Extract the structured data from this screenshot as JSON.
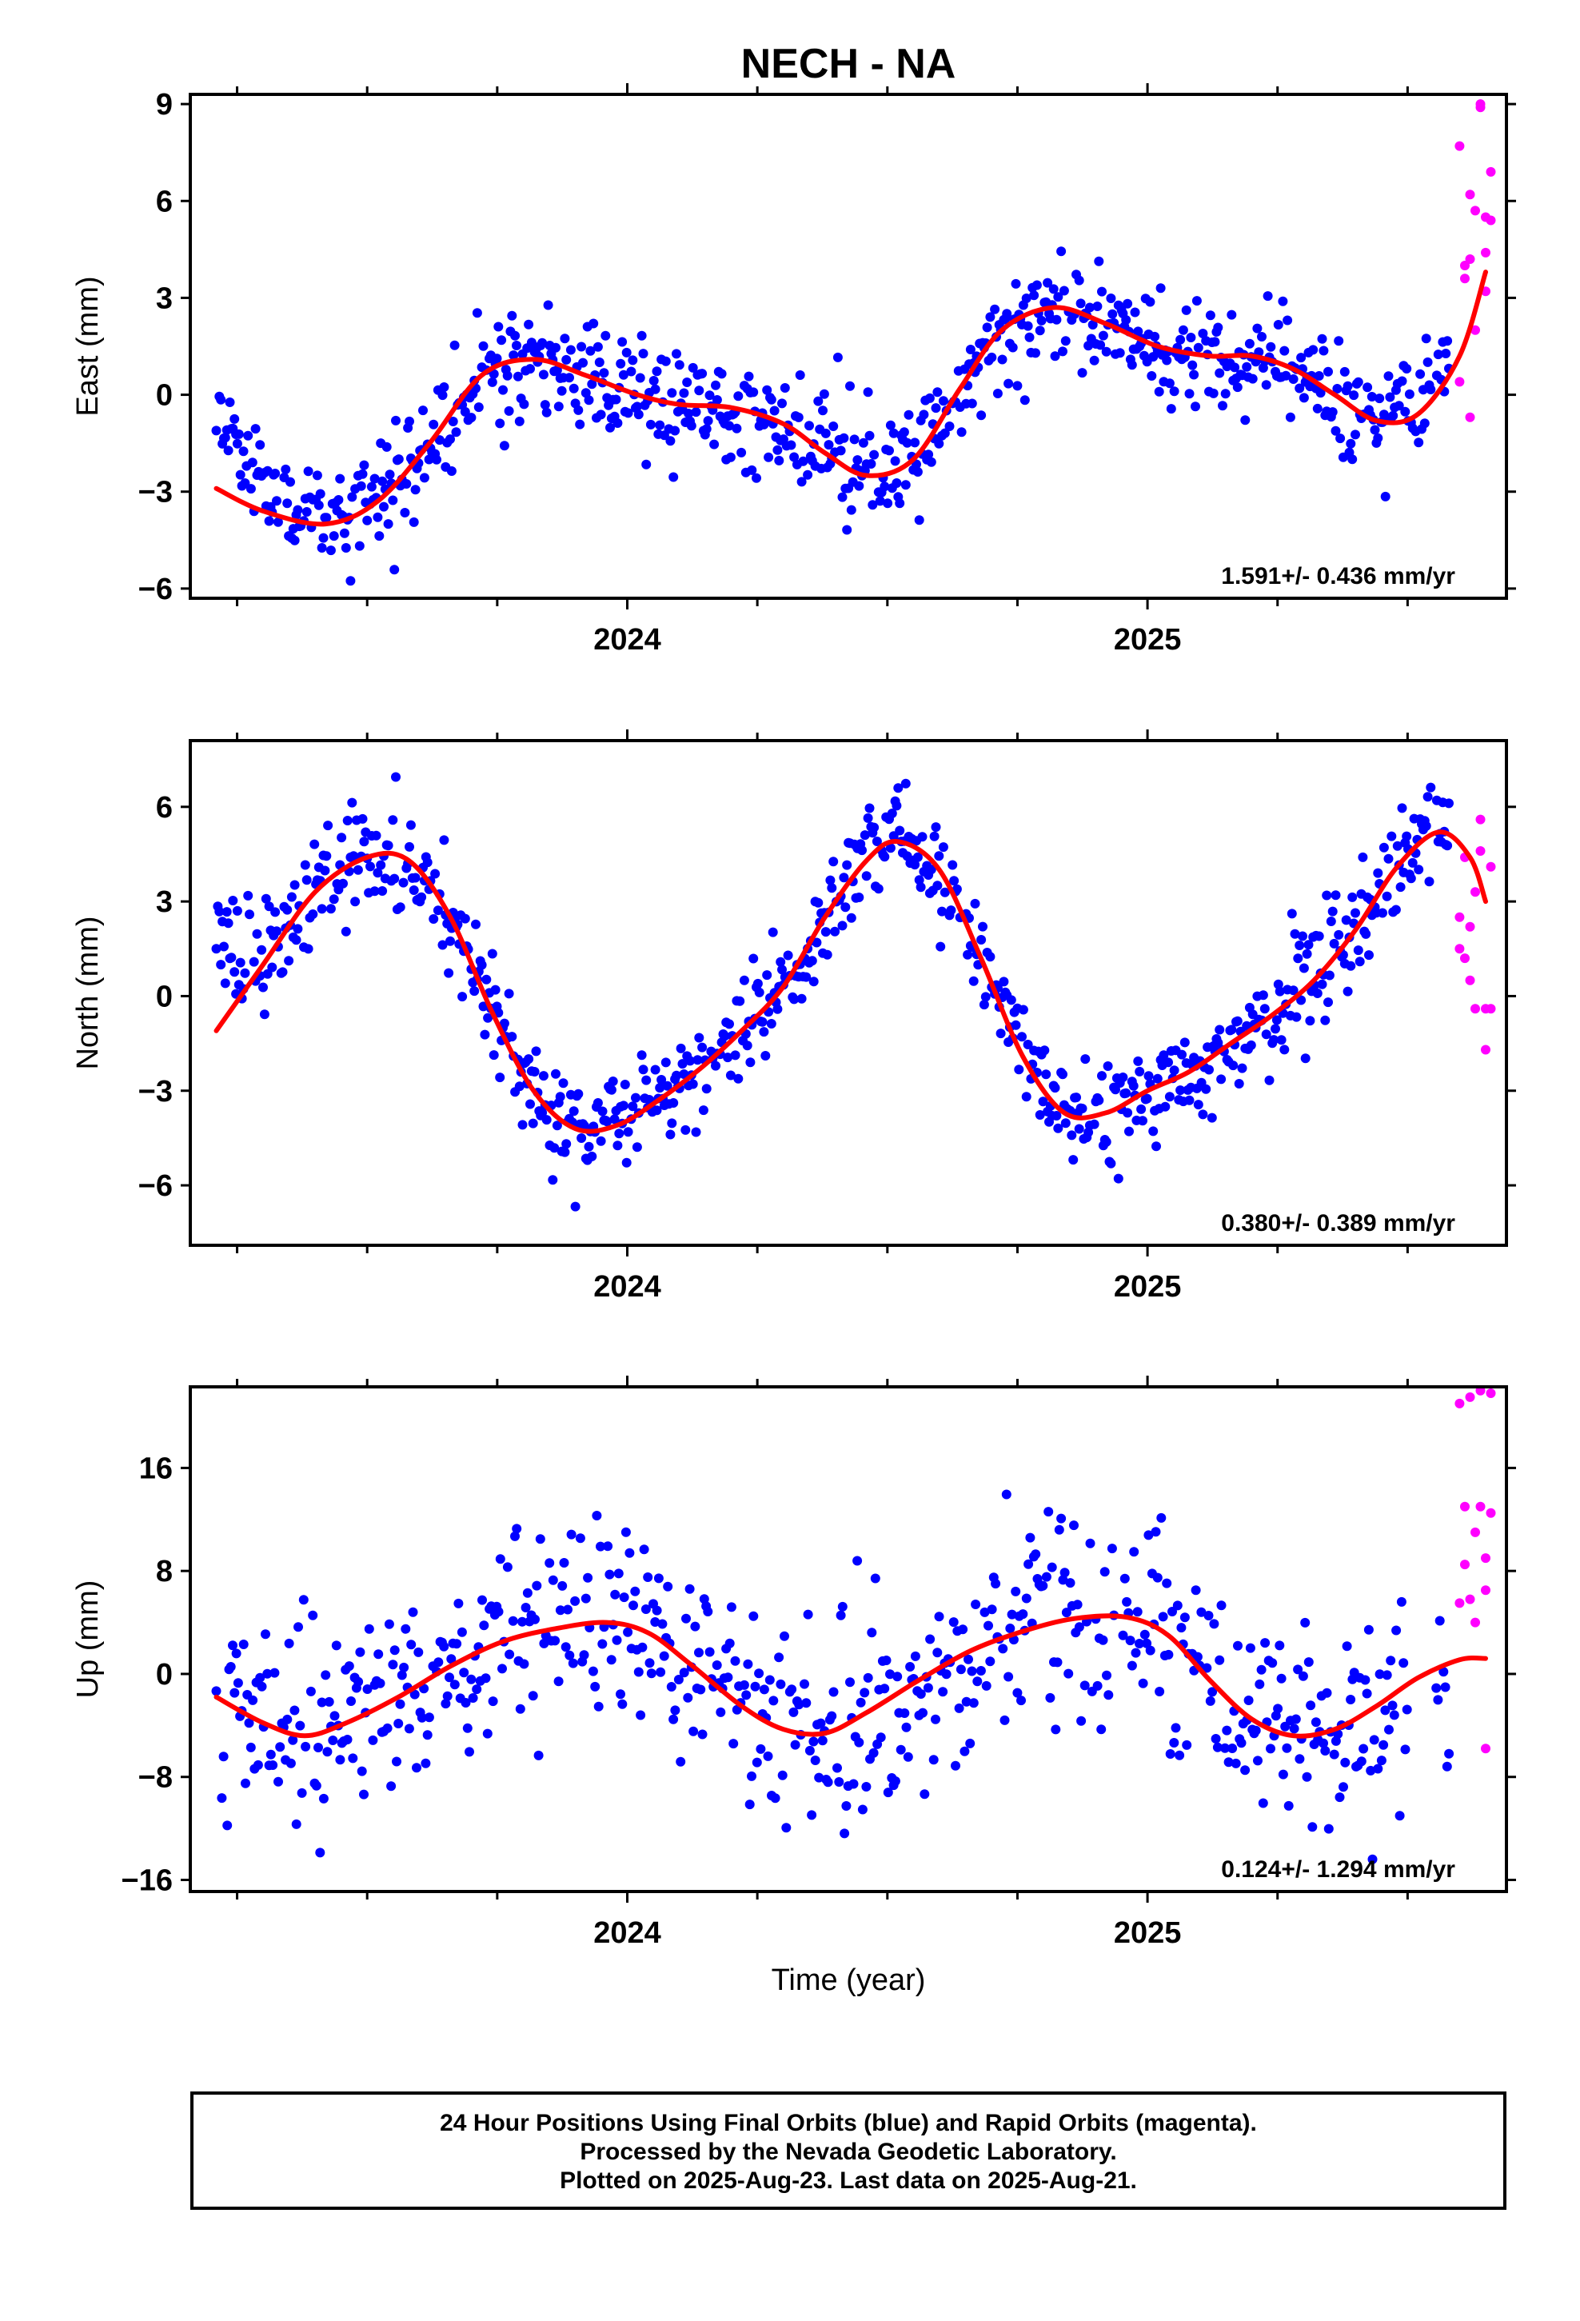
{
  "title": "NECH - NA",
  "xlabel": "Time (year)",
  "colors": {
    "final": "#0000ff",
    "rapid": "#ff00ff",
    "fit": "#ff0000",
    "frame": "#000000"
  },
  "footer": {
    "line1": "24 Hour Positions Using Final Orbits (blue) and Rapid Orbits (magenta).",
    "line2": "Processed by the Nevada Geodetic Laboratory.",
    "line3": "Plotted on 2025-Aug-23. Last data on 2025-Aug-21."
  },
  "chart_data": [
    {
      "type": "scatter",
      "ylabel": "East (mm)",
      "xlim": [
        2023.16,
        2025.69
      ],
      "ylim": [
        -6.3,
        9.3
      ],
      "yticks": [
        -6,
        -3,
        0,
        3,
        6,
        9
      ],
      "ytick_labels": [
        "−6",
        "−3",
        "0",
        "3",
        "6",
        "9"
      ],
      "xticks": [
        2024,
        2025
      ],
      "xtick_labels": [
        "2024",
        "2025"
      ],
      "grid": false,
      "rate_label": "1.591+/- 0.436 mm/yr",
      "fit": {
        "x": [
          2023.21,
          2023.3,
          2023.42,
          2023.52,
          2023.62,
          2023.72,
          2023.82,
          2023.92,
          2024.02,
          2024.1,
          2024.2,
          2024.3,
          2024.38,
          2024.46,
          2024.55,
          2024.64,
          2024.72,
          2024.82,
          2024.92,
          2025.02,
          2025.12,
          2025.2,
          2025.28,
          2025.36,
          2025.44,
          2025.52,
          2025.6,
          2025.65
        ],
        "y": [
          -2.9,
          -3.6,
          -4.0,
          -3.3,
          -1.5,
          0.6,
          1.1,
          0.6,
          0.0,
          -0.3,
          -0.4,
          -0.9,
          -1.8,
          -2.5,
          -2.0,
          0.2,
          2.0,
          2.7,
          2.2,
          1.5,
          1.2,
          1.2,
          0.8,
          0.0,
          -0.8,
          -0.6,
          1.2,
          3.8
        ]
      },
      "final": {
        "model": {
          "t": [
            2023.21,
            2023.3,
            2023.42,
            2023.52,
            2023.62,
            2023.72,
            2023.82,
            2023.92,
            2024.02,
            2024.1,
            2024.2,
            2024.3,
            2024.38,
            2024.46,
            2024.55,
            2024.64,
            2024.72,
            2024.82,
            2024.92,
            2025.02,
            2025.12,
            2025.2,
            2025.28,
            2025.36,
            2025.44,
            2025.52,
            2025.58
          ],
          "v": [
            -0.3,
            -3.0,
            -4.0,
            -3.3,
            -1.5,
            0.6,
            1.1,
            0.6,
            0.0,
            -0.3,
            -0.4,
            -0.9,
            -1.8,
            -2.5,
            -2.0,
            0.2,
            2.0,
            2.7,
            2.2,
            1.5,
            1.2,
            1.2,
            0.8,
            0.0,
            -0.8,
            -0.6,
            1.0
          ]
        },
        "range": [
          2023.21,
          2025.58
        ],
        "step": 0.0029,
        "noise": 0.85,
        "seed": 11,
        "gaps": [
          [
            2025.545,
            2025.555
          ]
        ]
      },
      "rapid": {
        "x": [
          2025.6,
          2025.6,
          2025.61,
          2025.61,
          2025.62,
          2025.62,
          2025.62,
          2025.63,
          2025.63,
          2025.64,
          2025.64,
          2025.65,
          2025.65,
          2025.65,
          2025.66,
          2025.66
        ],
        "y": [
          7.7,
          0.4,
          4.0,
          3.6,
          6.2,
          4.2,
          -0.7,
          2.0,
          5.7,
          9.0,
          8.9,
          3.2,
          5.5,
          4.4,
          6.9,
          5.4
        ]
      }
    },
    {
      "type": "scatter",
      "ylabel": "North (mm)",
      "xlim": [
        2023.16,
        2025.69
      ],
      "ylim": [
        -7.9,
        8.1
      ],
      "yticks": [
        -6,
        -3,
        0,
        3,
        6
      ],
      "ytick_labels": [
        "−6",
        "−3",
        "0",
        "3",
        "6"
      ],
      "xticks": [
        2024,
        2025
      ],
      "xtick_labels": [
        "2024",
        "2025"
      ],
      "grid": false,
      "rate_label": "0.380+/- 0.389 mm/yr",
      "fit": {
        "x": [
          2023.21,
          2023.3,
          2023.4,
          2023.5,
          2023.58,
          2023.66,
          2023.74,
          2023.82,
          2023.9,
          2023.98,
          2024.06,
          2024.14,
          2024.22,
          2024.3,
          2024.38,
          2024.46,
          2024.52,
          2024.6,
          2024.68,
          2024.76,
          2024.84,
          2024.92,
          2025.0,
          2025.08,
          2025.16,
          2025.24,
          2025.32,
          2025.4,
          2025.48,
          2025.56,
          2025.62,
          2025.65
        ],
        "y": [
          -1.1,
          1.0,
          3.3,
          4.4,
          4.3,
          2.5,
          -0.5,
          -3.0,
          -4.2,
          -4.1,
          -3.3,
          -2.3,
          -1.1,
          0.3,
          2.5,
          4.3,
          4.9,
          4.0,
          1.2,
          -1.9,
          -3.7,
          -3.7,
          -3.0,
          -2.4,
          -1.5,
          -0.6,
          0.5,
          2.1,
          4.1,
          5.2,
          4.4,
          3.0
        ]
      },
      "final": {
        "model": {
          "t": [
            2023.21,
            2023.3,
            2023.4,
            2023.5,
            2023.58,
            2023.66,
            2023.74,
            2023.82,
            2023.9,
            2023.98,
            2024.06,
            2024.14,
            2024.22,
            2024.3,
            2024.38,
            2024.46,
            2024.52,
            2024.6,
            2024.68,
            2024.76,
            2024.84,
            2024.92,
            2025.0,
            2025.08,
            2025.16,
            2025.24,
            2025.32,
            2025.4,
            2025.48,
            2025.56,
            2025.58
          ],
          "v": [
            2.6,
            1.0,
            3.3,
            4.4,
            4.3,
            2.5,
            -0.5,
            -3.0,
            -4.2,
            -4.1,
            -3.3,
            -2.3,
            -1.1,
            0.3,
            2.5,
            4.3,
            4.9,
            4.0,
            1.2,
            -1.9,
            -3.7,
            -3.7,
            -3.0,
            -2.4,
            -1.5,
            -0.6,
            0.5,
            2.1,
            4.1,
            5.2,
            5.6
          ]
        },
        "range": [
          2023.21,
          2025.58
        ],
        "step": 0.0029,
        "noise": 0.85,
        "seed": 23,
        "gaps": [
          [
            2025.545,
            2025.555
          ]
        ]
      },
      "rapid": {
        "x": [
          2025.6,
          2025.6,
          2025.61,
          2025.61,
          2025.62,
          2025.62,
          2025.63,
          2025.63,
          2025.64,
          2025.64,
          2025.65,
          2025.65,
          2025.66,
          2025.66
        ],
        "y": [
          2.5,
          1.5,
          4.4,
          1.2,
          0.5,
          2.2,
          3.3,
          -0.4,
          5.6,
          4.6,
          -0.4,
          -1.7,
          4.1,
          -0.4
        ]
      }
    },
    {
      "type": "scatter",
      "ylabel": "Up (mm)",
      "xlim": [
        2023.16,
        2025.69
      ],
      "ylim": [
        -16.9,
        22.3
      ],
      "yticks": [
        -16,
        -8,
        0,
        8,
        16
      ],
      "ytick_labels": [
        "−16",
        "−8",
        "0",
        "8",
        "16"
      ],
      "xticks": [
        2024,
        2025
      ],
      "xtick_labels": [
        "2024",
        "2025"
      ],
      "grid": false,
      "rate_label": "0.124+/- 1.294 mm/yr",
      "fit": {
        "x": [
          2023.21,
          2023.3,
          2023.38,
          2023.46,
          2023.56,
          2023.66,
          2023.76,
          2023.86,
          2023.96,
          2024.04,
          2024.12,
          2024.22,
          2024.3,
          2024.38,
          2024.46,
          2024.56,
          2024.66,
          2024.76,
          2024.86,
          2024.96,
          2025.04,
          2025.12,
          2025.2,
          2025.28,
          2025.36,
          2025.44,
          2025.52,
          2025.6,
          2025.65
        ],
        "y": [
          -1.8,
          -3.8,
          -4.8,
          -3.8,
          -1.8,
          0.6,
          2.5,
          3.5,
          4.0,
          3.2,
          0.8,
          -2.5,
          -4.3,
          -4.6,
          -3.0,
          -0.5,
          1.8,
          3.3,
          4.3,
          4.4,
          3.0,
          -0.5,
          -3.5,
          -4.8,
          -4.3,
          -2.5,
          -0.3,
          1.1,
          1.2
        ]
      },
      "final": {
        "model": {
          "t": [
            2023.21,
            2023.3,
            2023.38,
            2023.46,
            2023.56,
            2023.66,
            2023.76,
            2023.86,
            2023.96,
            2024.04,
            2024.12,
            2024.22,
            2024.3,
            2024.38,
            2024.46,
            2024.56,
            2024.66,
            2024.76,
            2024.86,
            2024.96,
            2025.04,
            2025.12,
            2025.2,
            2025.28,
            2025.36,
            2025.44,
            2025.52,
            2025.58
          ],
          "v": [
            -3.5,
            -3.8,
            -4.8,
            -3.8,
            -1.8,
            0.6,
            2.5,
            3.5,
            4.0,
            3.2,
            0.8,
            -2.5,
            -4.3,
            -4.6,
            -3.0,
            -0.5,
            1.8,
            3.3,
            4.3,
            4.4,
            3.0,
            -0.5,
            -3.5,
            -4.8,
            -4.3,
            -2.5,
            -0.3,
            -4.0
          ]
        },
        "range": [
          2023.21,
          2025.58
        ],
        "step": 0.0035,
        "noise": 4.0,
        "seed": 37,
        "gaps": [
          [
            2025.5,
            2025.555
          ]
        ]
      },
      "rapid": {
        "x": [
          2025.6,
          2025.6,
          2025.61,
          2025.61,
          2025.62,
          2025.62,
          2025.63,
          2025.63,
          2025.64,
          2025.64,
          2025.65,
          2025.65,
          2025.65,
          2025.66,
          2025.66
        ],
        "y": [
          21.0,
          5.5,
          13.0,
          8.5,
          21.5,
          5.8,
          4.0,
          11.0,
          22.0,
          13.0,
          9.0,
          6.5,
          -5.8,
          21.8,
          12.5
        ]
      }
    }
  ]
}
